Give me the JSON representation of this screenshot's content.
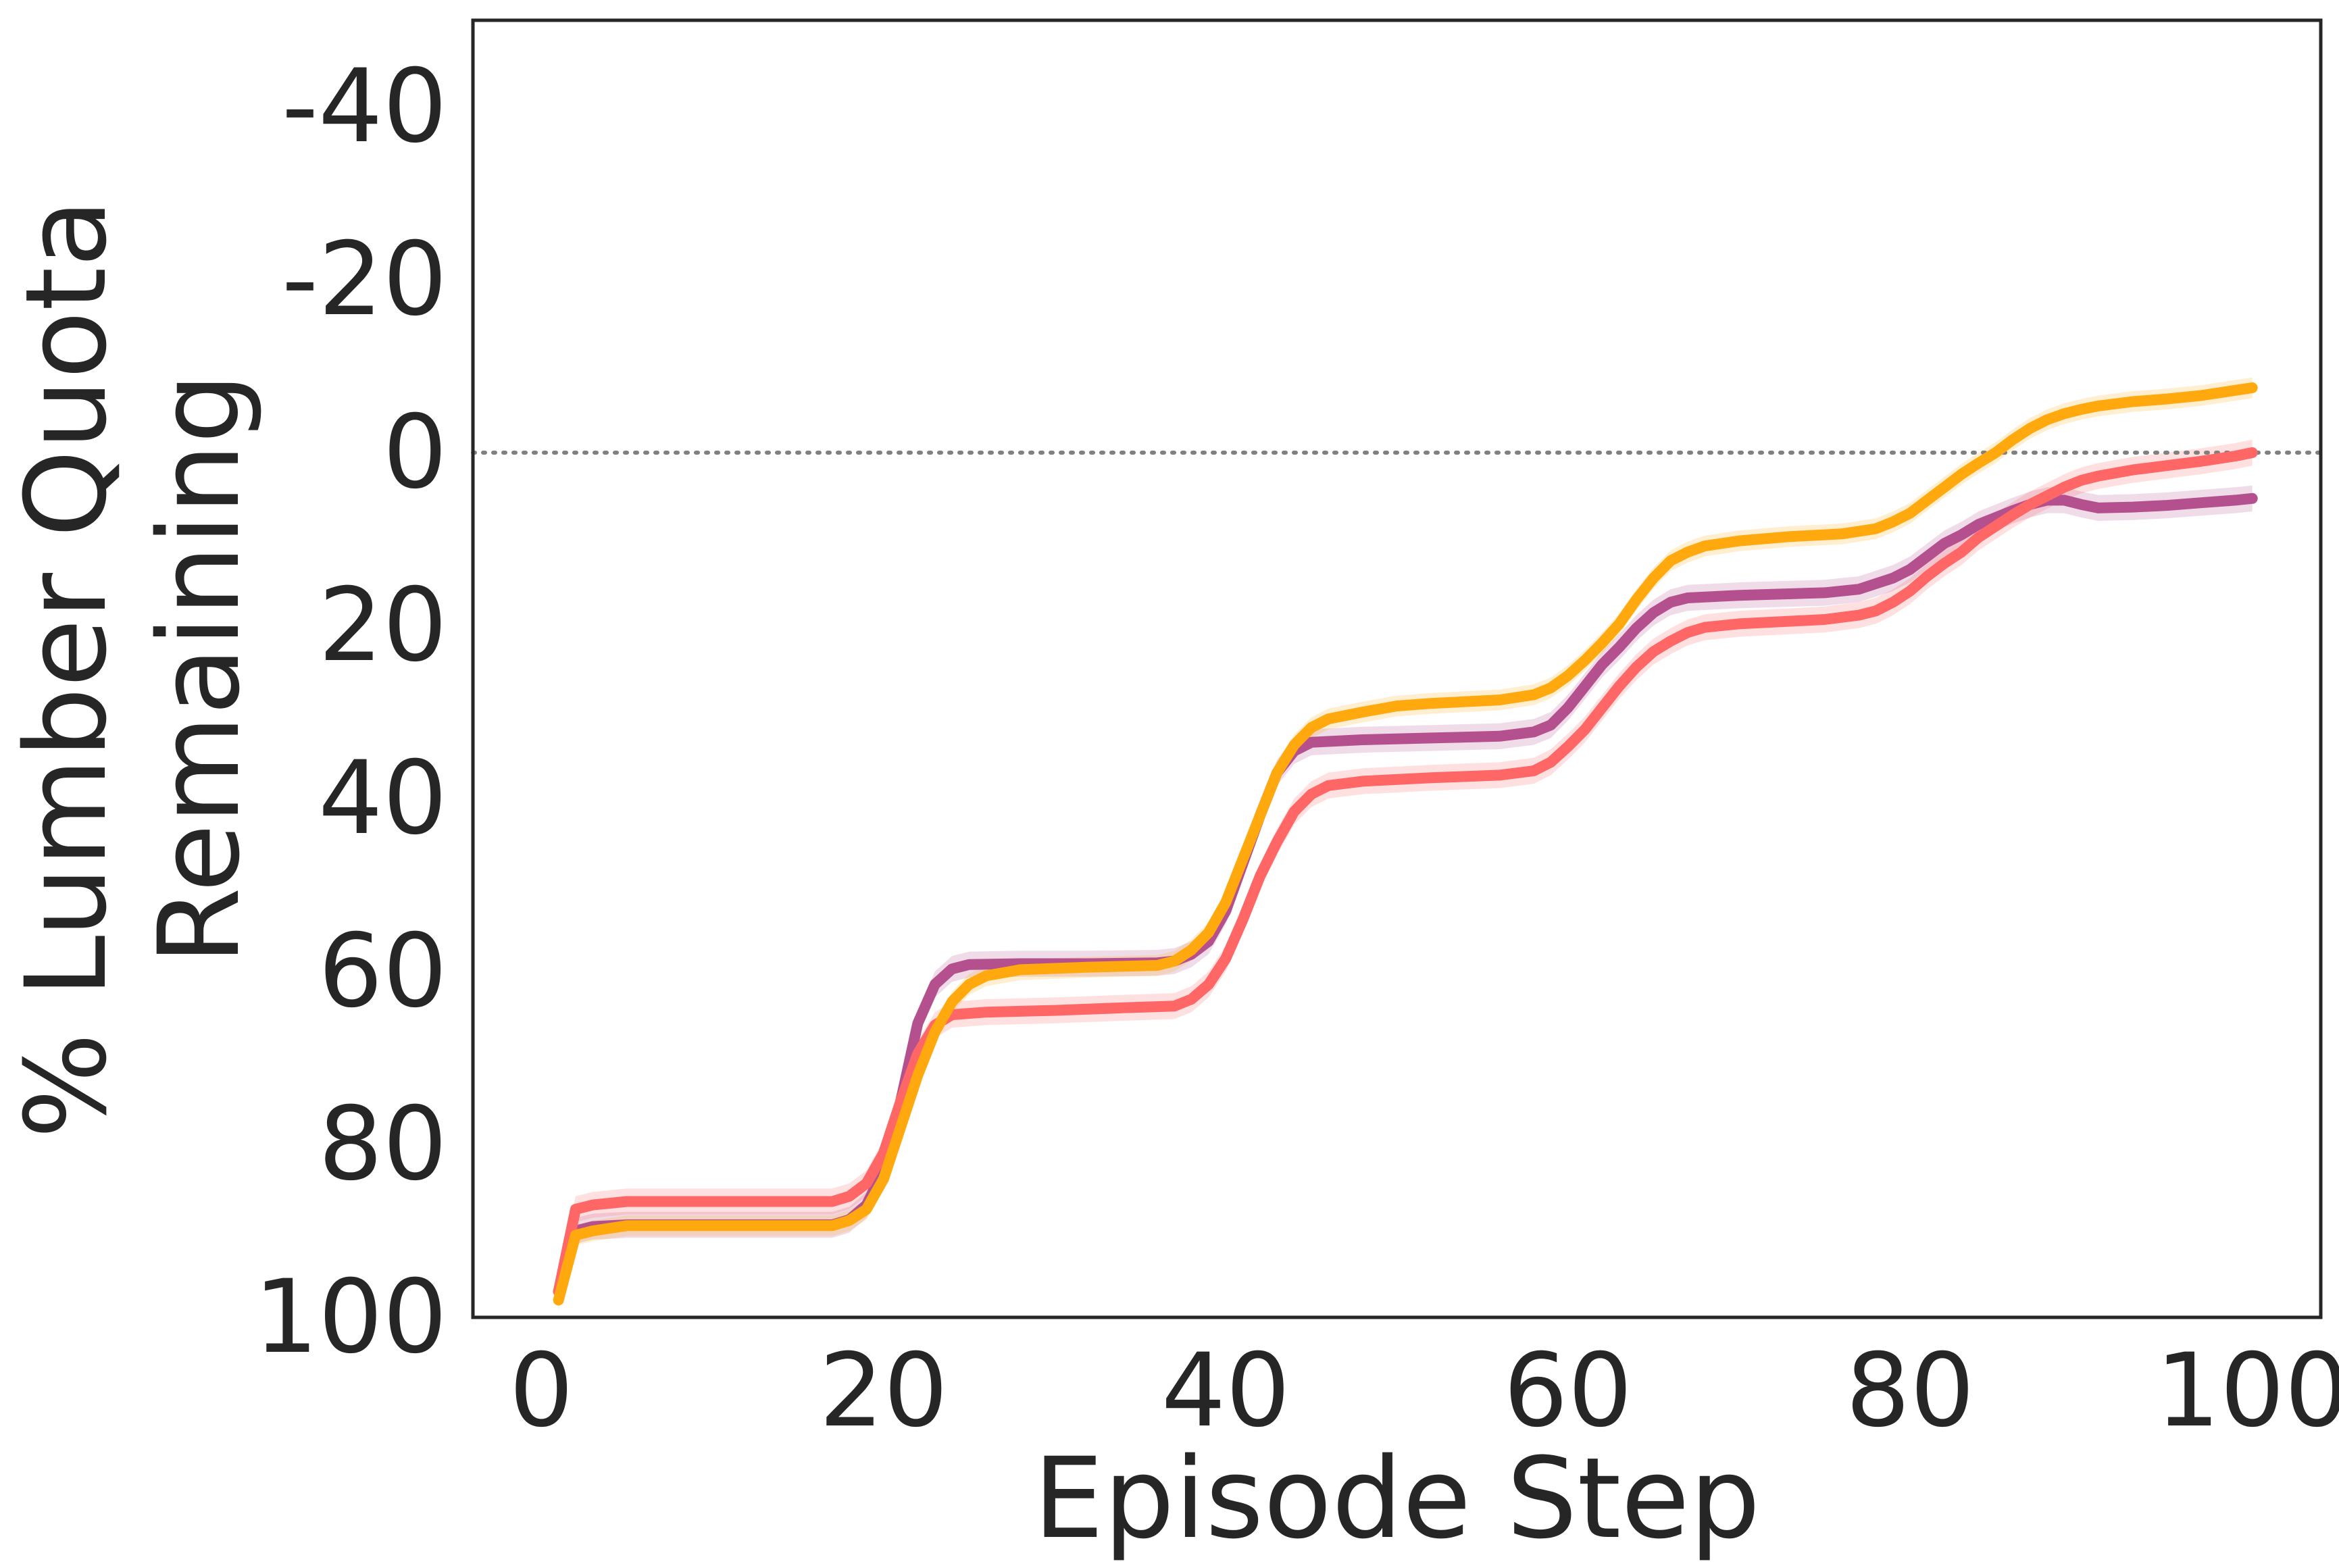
{
  "chart_data": {
    "type": "line",
    "xlabel": "Episode Step",
    "ylabel_lines": [
      "% Lumber Quota",
      "Remaining"
    ],
    "xlim": [
      -4,
      104
    ],
    "ylim": [
      100,
      -50
    ],
    "y_inverted": true,
    "xticks": [
      0,
      20,
      40,
      60,
      80,
      100
    ],
    "xtick_labels": [
      "0",
      "20",
      "40",
      "60",
      "80",
      "100"
    ],
    "yticks": [
      -40,
      -20,
      0,
      20,
      40,
      60,
      80,
      100
    ],
    "ytick_labels": [
      "-40",
      "-20",
      "0",
      "20",
      "40",
      "60",
      "80",
      "100"
    ],
    "reference_line": {
      "y": 0,
      "style": "dotted",
      "color": "#808080"
    },
    "grid": false,
    "series": [
      {
        "color": "#b5508f",
        "band": 1.5,
        "points": [
          [
            1,
            97
          ],
          [
            2,
            90
          ],
          [
            3,
            89.5
          ],
          [
            5,
            89.3
          ],
          [
            10,
            89.3
          ],
          [
            15,
            89.3
          ],
          [
            17,
            89.3
          ],
          [
            18,
            88.7
          ],
          [
            19,
            87
          ],
          [
            20,
            83
          ],
          [
            21,
            75
          ],
          [
            22,
            66
          ],
          [
            23,
            61.5
          ],
          [
            24,
            59.7
          ],
          [
            25,
            59.2
          ],
          [
            28,
            59.1
          ],
          [
            32,
            59.1
          ],
          [
            36,
            59
          ],
          [
            37,
            58.8
          ],
          [
            38,
            58
          ],
          [
            39,
            56.5
          ],
          [
            40,
            53
          ],
          [
            41,
            47.5
          ],
          [
            42,
            42
          ],
          [
            43,
            37
          ],
          [
            44,
            34.5
          ],
          [
            45,
            33.5
          ],
          [
            48,
            33.2
          ],
          [
            52,
            33
          ],
          [
            56,
            32.8
          ],
          [
            58,
            32.3
          ],
          [
            59,
            31.5
          ],
          [
            60,
            29.5
          ],
          [
            61,
            27
          ],
          [
            62,
            24.5
          ],
          [
            63,
            22.5
          ],
          [
            64,
            20.3
          ],
          [
            65,
            18.5
          ],
          [
            66,
            17.3
          ],
          [
            67,
            16.8
          ],
          [
            70,
            16.5
          ],
          [
            75,
            16.2
          ],
          [
            77,
            15.8
          ],
          [
            79,
            14.5
          ],
          [
            80,
            13.5
          ],
          [
            81,
            12
          ],
          [
            82,
            10.5
          ],
          [
            83,
            9.5
          ],
          [
            84,
            8.3
          ],
          [
            85,
            7.5
          ],
          [
            86,
            6.7
          ],
          [
            87,
            6
          ],
          [
            88,
            5.5
          ],
          [
            89,
            5.5
          ],
          [
            90,
            6
          ],
          [
            91,
            6.4
          ],
          [
            93,
            6.3
          ],
          [
            95,
            6.1
          ],
          [
            97,
            5.8
          ],
          [
            99,
            5.5
          ],
          [
            100,
            5.3
          ]
        ]
      },
      {
        "color": "#ff6666",
        "band": 1.5,
        "points": [
          [
            1,
            97
          ],
          [
            2,
            87.5
          ],
          [
            3,
            87
          ],
          [
            5,
            86.6
          ],
          [
            10,
            86.6
          ],
          [
            15,
            86.6
          ],
          [
            17,
            86.6
          ],
          [
            18,
            86
          ],
          [
            19,
            84.5
          ],
          [
            20,
            81
          ],
          [
            21,
            75
          ],
          [
            22,
            69.5
          ],
          [
            23,
            66.2
          ],
          [
            24,
            65
          ],
          [
            26,
            64.7
          ],
          [
            30,
            64.5
          ],
          [
            34,
            64.2
          ],
          [
            37,
            64
          ],
          [
            38,
            63.2
          ],
          [
            39,
            61.5
          ],
          [
            40,
            58.5
          ],
          [
            41,
            54
          ],
          [
            42,
            49
          ],
          [
            43,
            45
          ],
          [
            44,
            41.5
          ],
          [
            45,
            39.5
          ],
          [
            46,
            38.5
          ],
          [
            48,
            38
          ],
          [
            52,
            37.6
          ],
          [
            56,
            37.3
          ],
          [
            58,
            36.8
          ],
          [
            59,
            35.8
          ],
          [
            60,
            34
          ],
          [
            61,
            32
          ],
          [
            62,
            29.5
          ],
          [
            63,
            27
          ],
          [
            64,
            24.8
          ],
          [
            65,
            23
          ],
          [
            66,
            21.8
          ],
          [
            67,
            20.8
          ],
          [
            68,
            20.2
          ],
          [
            70,
            19.8
          ],
          [
            75,
            19.3
          ],
          [
            77,
            18.8
          ],
          [
            78,
            18.3
          ],
          [
            79,
            17.3
          ],
          [
            80,
            16
          ],
          [
            81,
            14.3
          ],
          [
            82,
            12.8
          ],
          [
            83,
            11.5
          ],
          [
            84,
            9.8
          ],
          [
            85,
            8.5
          ],
          [
            86,
            7.2
          ],
          [
            87,
            6
          ],
          [
            88,
            5
          ],
          [
            89,
            4
          ],
          [
            90,
            3.2
          ],
          [
            91,
            2.7
          ],
          [
            93,
            2
          ],
          [
            95,
            1.5
          ],
          [
            97,
            1
          ],
          [
            99,
            0.4
          ],
          [
            100,
            0
          ]
        ]
      },
      {
        "color": "#ffa90e",
        "band": 1.2,
        "points": [
          [
            1,
            98
          ],
          [
            2,
            90.5
          ],
          [
            3,
            90
          ],
          [
            5,
            89.4
          ],
          [
            10,
            89.4
          ],
          [
            15,
            89.4
          ],
          [
            17,
            89.4
          ],
          [
            18,
            88.8
          ],
          [
            19,
            87.5
          ],
          [
            20,
            84
          ],
          [
            21,
            78
          ],
          [
            22,
            72
          ],
          [
            23,
            67
          ],
          [
            24,
            63.5
          ],
          [
            25,
            61.5
          ],
          [
            26,
            60.5
          ],
          [
            28,
            59.8
          ],
          [
            32,
            59.5
          ],
          [
            36,
            59.3
          ],
          [
            37,
            58.8
          ],
          [
            38,
            57.5
          ],
          [
            39,
            55.5
          ],
          [
            40,
            52
          ],
          [
            41,
            47
          ],
          [
            42,
            42
          ],
          [
            43,
            37
          ],
          [
            44,
            33.8
          ],
          [
            45,
            31.8
          ],
          [
            46,
            30.8
          ],
          [
            48,
            30
          ],
          [
            50,
            29.3
          ],
          [
            52,
            29
          ],
          [
            56,
            28.6
          ],
          [
            58,
            28
          ],
          [
            59,
            27.2
          ],
          [
            60,
            25.8
          ],
          [
            61,
            24
          ],
          [
            62,
            22
          ],
          [
            63,
            19.8
          ],
          [
            64,
            17
          ],
          [
            65,
            14.5
          ],
          [
            66,
            12.5
          ],
          [
            67,
            11.5
          ],
          [
            68,
            10.8
          ],
          [
            70,
            10.2
          ],
          [
            73,
            9.7
          ],
          [
            76,
            9.4
          ],
          [
            78,
            8.8
          ],
          [
            79,
            8
          ],
          [
            80,
            7
          ],
          [
            81,
            5.5
          ],
          [
            82,
            4
          ],
          [
            83,
            2.5
          ],
          [
            84,
            1.2
          ],
          [
            85,
            0
          ],
          [
            86,
            -1.5
          ],
          [
            87,
            -2.8
          ],
          [
            88,
            -3.8
          ],
          [
            89,
            -4.5
          ],
          [
            90,
            -5
          ],
          [
            91,
            -5.4
          ],
          [
            93,
            -5.9
          ],
          [
            95,
            -6.2
          ],
          [
            97,
            -6.6
          ],
          [
            99,
            -7.2
          ],
          [
            100,
            -7.5
          ]
        ]
      }
    ]
  }
}
